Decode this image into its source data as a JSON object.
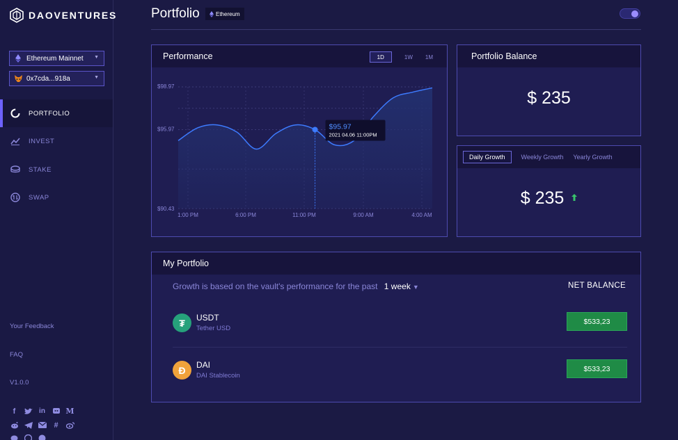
{
  "brand": {
    "name": "DAOVENTURES"
  },
  "sidebar": {
    "network": {
      "label": "Ethereum Mainnet"
    },
    "wallet": {
      "label": "0x7cda...918a"
    },
    "nav": [
      {
        "label": "PORTFOLIO",
        "icon": "portfolio-icon",
        "active": true
      },
      {
        "label": "INVEST",
        "icon": "invest-icon",
        "active": false
      },
      {
        "label": "STAKE",
        "icon": "stake-icon",
        "active": false
      },
      {
        "label": "SWAP",
        "icon": "swap-icon",
        "active": false
      }
    ],
    "links": {
      "feedback": "Your Feedback",
      "faq": "FAQ",
      "version": "V1.0.0"
    },
    "socials": [
      "facebook-icon",
      "twitter-icon",
      "linkedin-icon",
      "discord-icon",
      "medium-icon",
      "reddit-icon",
      "telegram-icon",
      "email-icon",
      "slack-icon",
      "weibo-icon"
    ]
  },
  "header": {
    "title": "Portfolio",
    "network_badge": "Ethereum"
  },
  "performance": {
    "title": "Performance",
    "tabs": [
      "1D",
      "1W",
      "1M"
    ],
    "active_tab": "1D"
  },
  "balance": {
    "title": "Portfolio Balance",
    "amount": "$ 235"
  },
  "growth": {
    "tabs": [
      "Daily Growth",
      "Weekly Growth",
      "Yearly Growth"
    ],
    "active_tab": "Daily Growth",
    "amount": "$ 235",
    "trend_color": "#39c46b"
  },
  "my_portfolio": {
    "title": "My Portfolio",
    "subtitle": "Growth is based on the vault's performance for the past",
    "period": "1 week",
    "net_balance_header": "NET BALANCE",
    "assets": [
      {
        "symbol": "USDT",
        "name": "Tether USD",
        "balance": "$533,23",
        "color": "#26a17b",
        "glyph": "₮"
      },
      {
        "symbol": "DAI",
        "name": "DAI Stablecoin",
        "balance": "$533,23",
        "color": "#f0a23b",
        "glyph": "Đ"
      }
    ]
  },
  "chart_data": {
    "type": "area",
    "x_ticks": [
      "1:00 PM",
      "6:00 PM",
      "11:00 PM",
      "9:00 AM",
      "4:00 AM"
    ],
    "y_ticks": [
      "$98.97",
      "$95.97",
      "$90.43"
    ],
    "y_tick_values": [
      98.97,
      95.97,
      90.43
    ],
    "ylim": [
      90.43,
      98.97
    ],
    "series": [
      {
        "values": [
          95.2,
          96.1,
          96.3,
          95.8,
          94.6,
          95.7,
          96.3,
          95.97,
          94.9,
          95.2,
          96.9,
          98.2,
          98.6,
          98.9
        ]
      }
    ],
    "tooltip": {
      "value": "$95.97",
      "date": "2021 04.06 11:00PM",
      "index": 7
    },
    "line_color": "#3d7bff",
    "fill_color": "#23306f"
  }
}
